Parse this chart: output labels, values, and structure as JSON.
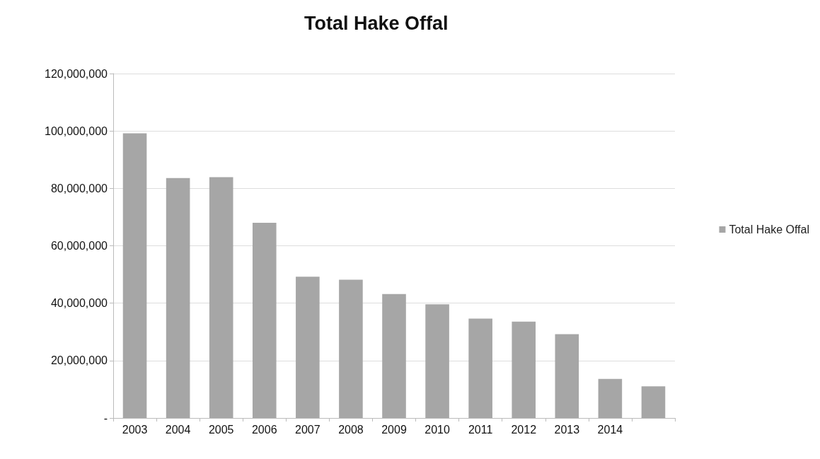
{
  "chart_data": {
    "type": "bar",
    "title": "Total Hake Offal",
    "categories": [
      "2003",
      "2004",
      "2005",
      "2006",
      "2007",
      "2008",
      "2009",
      "2010",
      "2011",
      "2012",
      "2013",
      "2014",
      null
    ],
    "series": [
      {
        "name": "Total Hake Offal",
        "color": "#a6a6a6",
        "values": [
          99200000,
          83600000,
          83900000,
          68000000,
          49200000,
          48200000,
          43200000,
          39600000,
          34600000,
          33600000,
          29200000,
          13600000,
          11000000
        ]
      }
    ],
    "ylim": [
      0,
      120000000
    ],
    "yticks": [
      {
        "value": 0,
        "label": "-"
      },
      {
        "value": 20000000,
        "label": "20,000,000"
      },
      {
        "value": 40000000,
        "label": "40,000,000"
      },
      {
        "value": 60000000,
        "label": "60,000,000"
      },
      {
        "value": 80000000,
        "label": "80,000,000"
      },
      {
        "value": 100000000,
        "label": "100,000,000"
      },
      {
        "value": 120000000,
        "label": "120,000,000"
      }
    ],
    "grid": "y",
    "legend": "right"
  }
}
